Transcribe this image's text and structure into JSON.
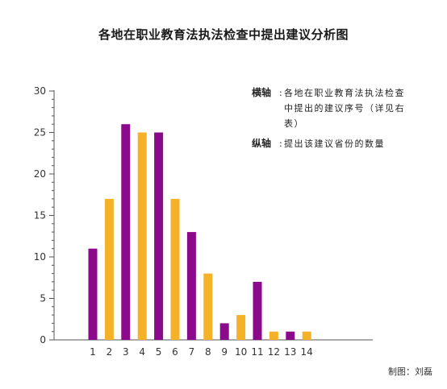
{
  "title": "各地在职业教育法执法检查中提出建议分析图",
  "legend": {
    "x_key": "横轴",
    "x_desc": "各地在职业教育法执法检查中提出的建议序号（详见右表）",
    "y_key": "纵轴",
    "y_desc": "提出该建议省份的数量",
    "sep": ":"
  },
  "credit": "制图：刘磊",
  "colors": {
    "purple": "#8b0a8b",
    "orange": "#f5b228",
    "axis": "#555555"
  },
  "chart_data": {
    "type": "bar",
    "title": "各地在职业教育法执法检查中提出建议分析图",
    "categories": [
      "1",
      "2",
      "3",
      "4",
      "5",
      "6",
      "7",
      "8",
      "9",
      "10",
      "11",
      "12",
      "13",
      "14"
    ],
    "values": [
      11,
      17,
      26,
      25,
      25,
      17,
      13,
      8,
      2,
      3,
      7,
      1,
      1,
      1
    ],
    "bar_colors": [
      "purple",
      "orange",
      "purple",
      "orange",
      "purple",
      "orange",
      "purple",
      "orange",
      "purple",
      "orange",
      "purple",
      "orange",
      "purple",
      "orange"
    ],
    "y_ticks": [
      0,
      5,
      10,
      15,
      20,
      25,
      30
    ],
    "ylim": [
      0,
      30
    ],
    "grid": false
  }
}
